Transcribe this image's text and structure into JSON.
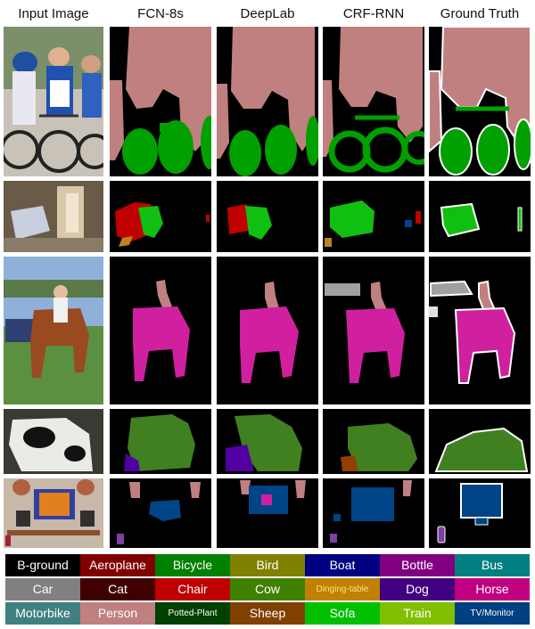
{
  "headers": [
    "Input Image",
    "FCN-8s",
    "DeepLab",
    "CRF-RNN",
    "Ground Truth"
  ],
  "colors": {
    "background": "#000000",
    "person": "#C08080",
    "bicycle": "#00A000",
    "sofa": "#10C010",
    "chair": "#C00000",
    "horse": "#D020A0",
    "cow": "#408020",
    "dining_table": "#C08020",
    "dog": "#5000A0",
    "sheep": "#904000",
    "tv_monitor": "#004488",
    "bottle": "#8040A0",
    "car": "#A0A0A0"
  },
  "legend": [
    {
      "label": "B-ground",
      "color": "#000000"
    },
    {
      "label": "Aeroplane",
      "color": "#800000"
    },
    {
      "label": "Bicycle",
      "color": "#008000"
    },
    {
      "label": "Bird",
      "color": "#808000"
    },
    {
      "label": "Boat",
      "color": "#000080"
    },
    {
      "label": "Bottle",
      "color": "#800080"
    },
    {
      "label": "Bus",
      "color": "#008080"
    },
    {
      "label": "Car",
      "color": "#808080"
    },
    {
      "label": "Cat",
      "color": "#400000"
    },
    {
      "label": "Chair",
      "color": "#C00000"
    },
    {
      "label": "Cow",
      "color": "#408000"
    },
    {
      "label": "Dinging-table",
      "color": "#C08000"
    },
    {
      "label": "Dog",
      "color": "#400080"
    },
    {
      "label": "Horse",
      "color": "#C00080"
    },
    {
      "label": "Motorbike",
      "color": "#408080"
    },
    {
      "label": "Person",
      "color": "#C08080"
    },
    {
      "label": "Potted-Plant",
      "color": "#004000"
    },
    {
      "label": "Sheep",
      "color": "#804000"
    },
    {
      "label": "Sofa",
      "color": "#00C000"
    },
    {
      "label": "Train",
      "color": "#80C000"
    },
    {
      "label": "TV/Monitor",
      "color": "#004080"
    }
  ]
}
